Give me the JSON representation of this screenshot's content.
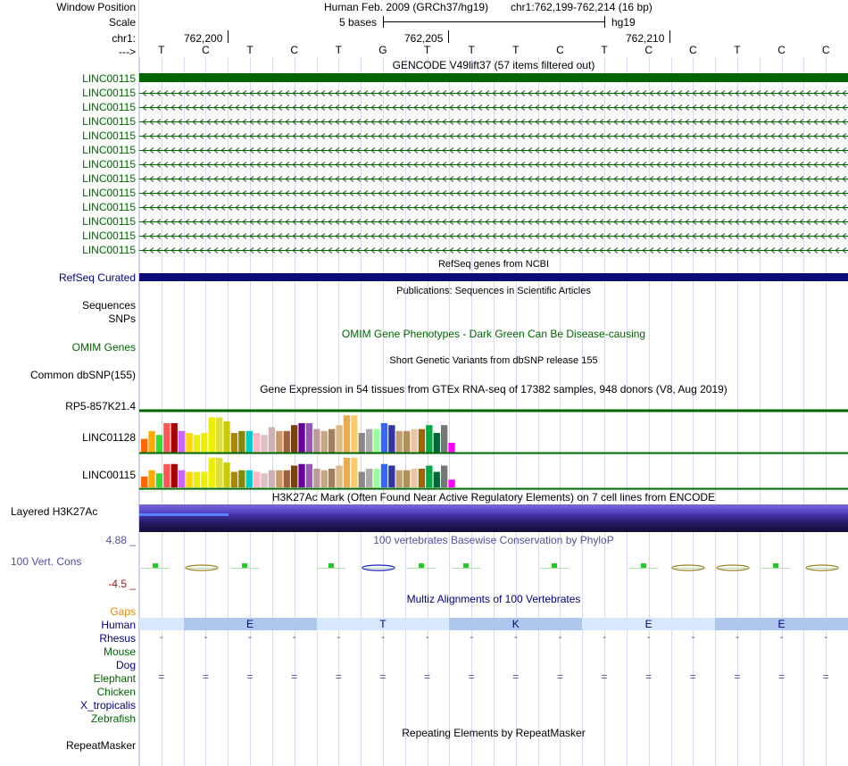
{
  "labels": {
    "window_position": "Window Position",
    "scale": "Scale",
    "chrom": "chr1:",
    "strand": "--->",
    "refseq": "RefSeq Curated",
    "sequences": "Sequences",
    "snps": "SNPs",
    "omim": "OMIM Genes",
    "dbsnp": "Common dbSNP(155)",
    "gtex_gene1": "RP5-857K21.4",
    "gtex_gene2": "LINC01128",
    "gtex_gene3": "LINC00115",
    "h3k27ac": "Layered H3K27Ac",
    "cons_max": "4.88 _",
    "cons_label": "100 Vert. Cons",
    "cons_min": "-4.5 _",
    "gaps": "Gaps",
    "repeatmasker": "RepeatMasker"
  },
  "gencode_labels": [
    "LINC00115",
    "LINC00115",
    "LINC00115",
    "LINC00115",
    "LINC00115",
    "LINC00115",
    "LINC00115",
    "LINC00115",
    "LINC00115",
    "LINC00115",
    "LINC00115",
    "LINC00115",
    "LINC00115"
  ],
  "species": [
    {
      "name": "Human",
      "color": "#000080",
      "row": "aa"
    },
    {
      "name": "Rhesus",
      "color": "#000080",
      "row": "dash"
    },
    {
      "name": "Mouse",
      "color": "#006400",
      "row": "none"
    },
    {
      "name": "Dog",
      "color": "#000080",
      "row": "none"
    },
    {
      "name": "Elephant",
      "color": "#006400",
      "row": "eq"
    },
    {
      "name": "Chicken",
      "color": "#006400",
      "row": "none"
    },
    {
      "name": "X_tropicalis",
      "color": "#000080",
      "row": "none"
    },
    {
      "name": "Zebrafish",
      "color": "#006400",
      "row": "none"
    }
  ],
  "header": {
    "assembly": "Human Feb. 2009 (GRCh37/hg19)",
    "position": "chr1:762,199-762,214 (16 bp)",
    "scale_text": "5 bases",
    "scale_db": "hg19",
    "ticks": [
      "762,200",
      "762,205",
      "762,210"
    ]
  },
  "sequence": [
    "T",
    "C",
    "T",
    "C",
    "T",
    "G",
    "T",
    "T",
    "T",
    "C",
    "T",
    "C",
    "C",
    "T",
    "C",
    "C"
  ],
  "amino_acids": [
    "E",
    "T",
    "K",
    "E",
    "E"
  ],
  "titles": {
    "gencode": "GENCODE V49lift37 (57 items filtered out)",
    "refseq": "RefSeq genes from NCBI",
    "publications": "Publications: Sequences in Scientific Articles",
    "omim": "OMIM Gene Phenotypes - Dark Green Can Be Disease-causing",
    "dbsnp": "Short Genetic Variants from dbSNP release 155",
    "gtex": "Gene Expression in 54 tissues from GTEx RNA-seq of 17382 samples, 948 donors (V8, Aug 2019)",
    "h3k27ac": "H3K27Ac Mark (Often Found Near Active Regulatory Elements) on 7 cell lines from ENCODE",
    "phylop": "100 vertebrates Basewise Conservation by PhyloP",
    "multiz": "Multiz Alignments of 100 Vertebrates",
    "repeatmasker": "Repeating Elements by RepeatMasker"
  },
  "colors": {
    "gencode": "#006400",
    "refseq": "#0c0c78",
    "grid": "#d8d8f0",
    "human_row": "#d8e8fc",
    "human_row_alt": "#aec6ec"
  },
  "gtex_tissue_colors": [
    "#ff6600",
    "#ffaa00",
    "#33dd33",
    "#ff5555",
    "#aa0000",
    "#cc66ff",
    "#ffd700",
    "#eeee00",
    "#eeee00",
    "#eeee00",
    "#dddd44",
    "#cccc00",
    "#aa8800",
    "#888800",
    "#00cccc",
    "#ffb6c1",
    "#e0c0c0",
    "#d0b0b0",
    "#cc9966",
    "#a06040",
    "#7a4010",
    "#660099",
    "#9955bb",
    "#bb9999",
    "#c8a882",
    "#a08060",
    "#ddbb88",
    "#eeaa44",
    "#ffcc66",
    "#888888",
    "#aaaaaa",
    "#99ff99",
    "#3366ff",
    "#3333aa",
    "#c0a070",
    "#b09060",
    "#e8c8a0",
    "#996600",
    "#00aa44",
    "#006633",
    "#777777",
    "#ff00ff"
  ],
  "gtex_levels": {
    "LINC01128": [
      0.35,
      0.55,
      0.45,
      0.75,
      0.75,
      0.55,
      0.5,
      0.45,
      0.5,
      0.9,
      0.9,
      0.8,
      0.5,
      0.55,
      0.55,
      0.5,
      0.45,
      0.65,
      0.55,
      0.55,
      0.7,
      0.75,
      0.75,
      0.6,
      0.55,
      0.6,
      0.7,
      0.95,
      0.95,
      0.5,
      0.6,
      0.6,
      0.75,
      0.7,
      0.55,
      0.55,
      0.6,
      0.6,
      0.7,
      0.5,
      0.7,
      0.25
    ],
    "LINC00115": [
      0.35,
      0.55,
      0.45,
      0.75,
      0.75,
      0.55,
      0.5,
      0.5,
      0.5,
      0.95,
      0.95,
      0.8,
      0.5,
      0.55,
      0.55,
      0.5,
      0.45,
      0.55,
      0.55,
      0.55,
      0.7,
      0.75,
      0.75,
      0.6,
      0.55,
      0.6,
      0.7,
      0.95,
      0.95,
      0.5,
      0.6,
      0.6,
      0.75,
      0.7,
      0.55,
      0.55,
      0.6,
      0.6,
      0.7,
      0.5,
      0.7,
      0.25
    ]
  }
}
